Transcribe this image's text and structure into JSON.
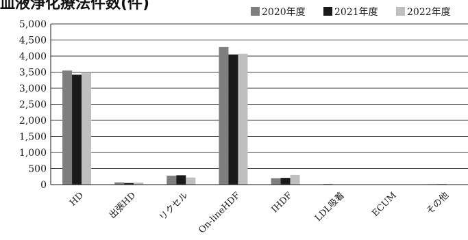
{
  "chart_data": {
    "type": "bar",
    "title": "血液浄化療法件数(件)",
    "categories": [
      "HD",
      "出張HD",
      "リクセル",
      "On-lineHDF",
      "IHDF",
      "LDL吸着",
      "ECUM",
      "その他"
    ],
    "series": [
      {
        "name": "2020年度",
        "color": "#7f7f7f",
        "values": [
          3550,
          70,
          280,
          4280,
          200,
          20,
          0,
          15
        ]
      },
      {
        "name": "2021年度",
        "color": "#1a1a1a",
        "values": [
          3420,
          50,
          290,
          4050,
          210,
          5,
          0,
          15
        ]
      },
      {
        "name": "2022年度",
        "color": "#bfbfbf",
        "values": [
          3500,
          65,
          220,
          4070,
          300,
          5,
          0,
          5
        ]
      }
    ],
    "ylim": [
      0,
      5000
    ],
    "yticks": [
      0,
      500,
      1000,
      1500,
      2000,
      2500,
      3000,
      3500,
      4000,
      4500,
      5000
    ],
    "ytick_labels": [
      "0",
      "500",
      "1,000",
      "1,500",
      "2,000",
      "2,500",
      "3,000",
      "3,500",
      "4,000",
      "4,500",
      "5,000"
    ],
    "grid": true,
    "legend": "top-right"
  }
}
